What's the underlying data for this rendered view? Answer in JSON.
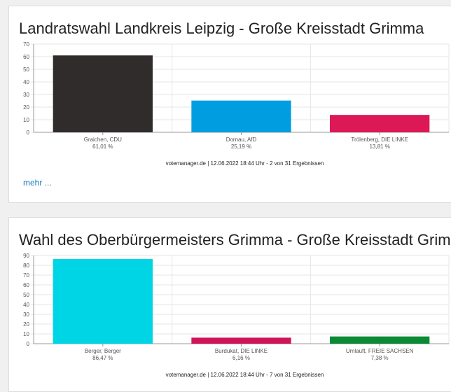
{
  "charts": [
    {
      "title": "Landratswahl Landkreis Leipzig - Große Kreisstadt Grimma",
      "footnote": "votemanager.de | 12.06.2022 18:44 Uhr - 2 von 31 Ergebnissen",
      "more_link": "mehr ..."
    },
    {
      "title": "Wahl des Oberbürgermeisters Grimma - Große Kreisstadt Grimma",
      "footnote": "votemanager.de | 12.06.2022 18:44 Uhr - 7 von 31 Ergebnissen"
    }
  ],
  "chart_data": [
    {
      "type": "bar",
      "title": "Landratswahl Landkreis Leipzig - Große Kreisstadt Grimma",
      "categories": [
        "Graichen, CDU",
        "Dornau, AfD",
        "Trölenberg, DIE LINKE"
      ],
      "values": [
        61.01,
        25.19,
        13.81
      ],
      "value_labels": [
        "61,01 %",
        "25,19 %",
        "13,81 %"
      ],
      "colors": [
        "#302c2c",
        "#009ee0",
        "#dc1857"
      ],
      "ylim": [
        0,
        70
      ],
      "yticks": [
        0,
        10,
        20,
        30,
        40,
        50,
        60,
        70
      ],
      "grid": true
    },
    {
      "type": "bar",
      "title": "Wahl des Oberbürgermeisters Grimma - Große Kreisstadt Grimma",
      "categories": [
        "Berger, Berger",
        "Burdukat, DIE LINKE",
        "Umlauft, FREIE SACHSEN"
      ],
      "values": [
        86.47,
        6.16,
        7.38
      ],
      "value_labels": [
        "86,47 %",
        "6,16 %",
        "7,38 %"
      ],
      "colors": [
        "#00d5e6",
        "#d0145a",
        "#0a8a35"
      ],
      "ylim": [
        0,
        90
      ],
      "yticks": [
        0,
        10,
        20,
        30,
        40,
        50,
        60,
        70,
        80,
        90
      ],
      "grid": true
    }
  ]
}
